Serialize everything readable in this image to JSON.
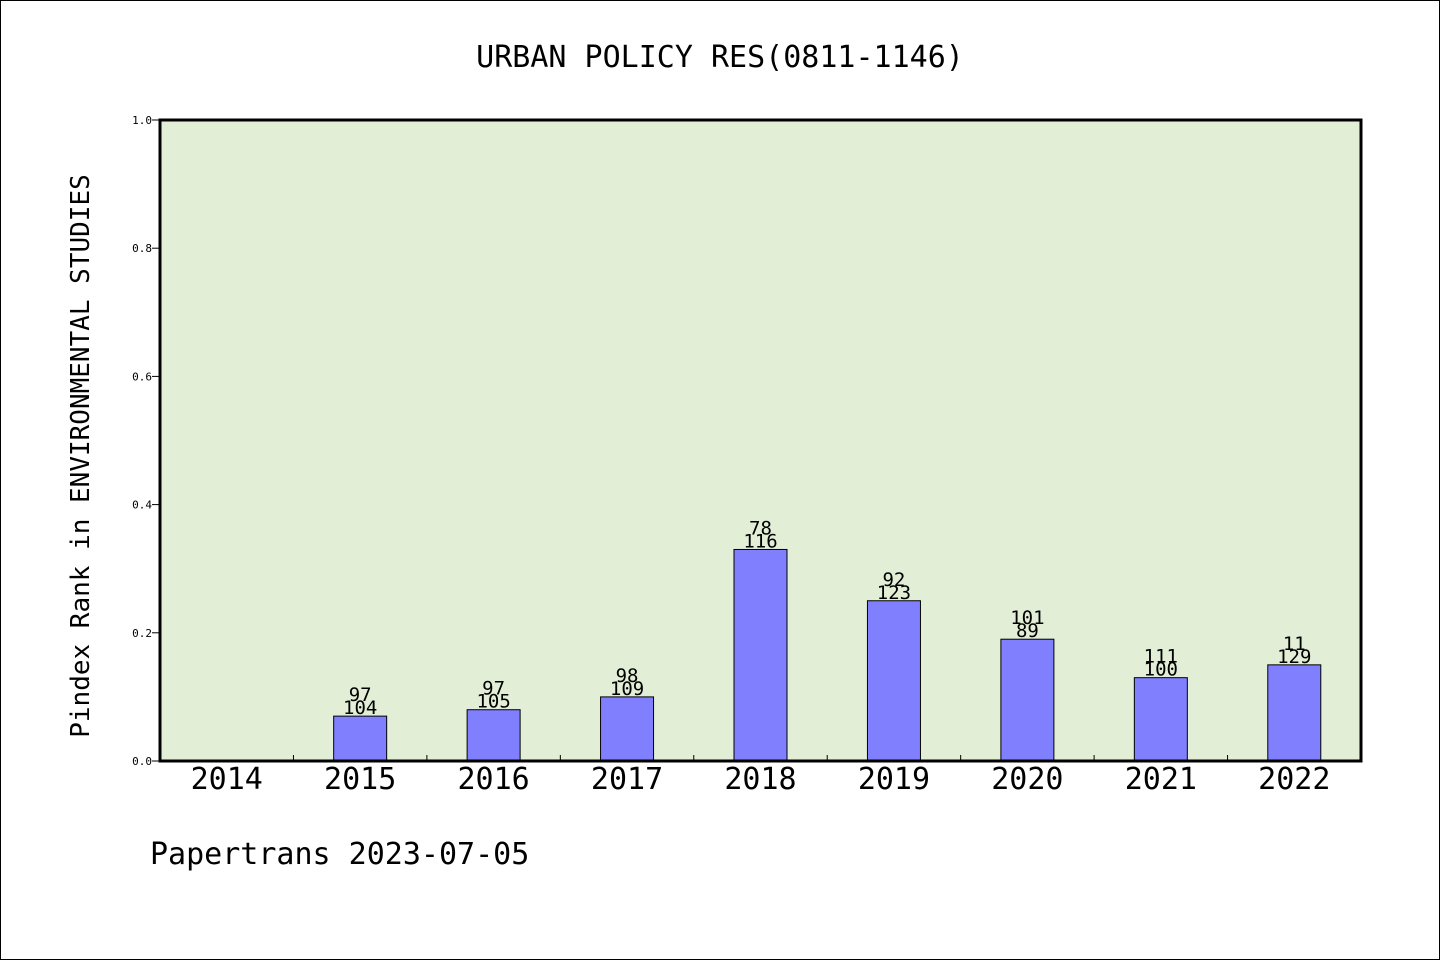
{
  "chart_data": {
    "type": "bar",
    "title": "URBAN POLICY RES(0811-1146)",
    "ylabel": "Pindex Rank in ENVIRONMENTAL STUDIES",
    "xlabel": "",
    "categories": [
      "2014",
      "2015",
      "2016",
      "2017",
      "2018",
      "2019",
      "2020",
      "2021",
      "2022"
    ],
    "values": [
      null,
      0.07,
      0.08,
      0.1,
      0.33,
      0.25,
      0.19,
      0.13,
      0.15
    ],
    "labels_top": [
      "",
      "97",
      "97",
      "98",
      "78",
      "92",
      "101",
      "111",
      "11"
    ],
    "labels_bottom": [
      "",
      "104",
      "105",
      "109",
      "116",
      "123",
      "89",
      "100",
      "129"
    ],
    "ylim": [
      0,
      1.0
    ],
    "yticks": [
      "0.0",
      "0.2",
      "0.4",
      "0.6",
      "0.8",
      "1.0"
    ],
    "grid": false,
    "colors": {
      "bar_fill": "#8080ff",
      "plot_background": "#e2efd6",
      "axis": "#000000"
    }
  },
  "footer": {
    "credit": "Papertrans 2023-07-05"
  }
}
